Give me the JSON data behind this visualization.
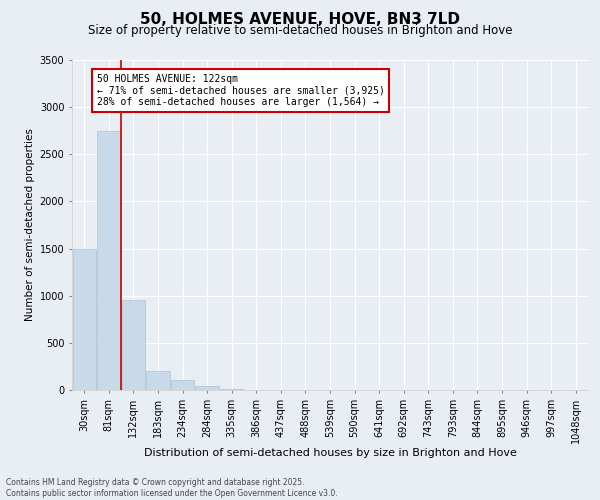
{
  "title": "50, HOLMES AVENUE, HOVE, BN3 7LD",
  "subtitle": "Size of property relative to semi-detached houses in Brighton and Hove",
  "xlabel": "Distribution of semi-detached houses by size in Brighton and Hove",
  "ylabel": "Number of semi-detached properties",
  "bar_color": "#c8daea",
  "bar_edge_color": "#aac4d8",
  "categories": [
    "30sqm",
    "81sqm",
    "132sqm",
    "183sqm",
    "234sqm",
    "284sqm",
    "335sqm",
    "386sqm",
    "437sqm",
    "488sqm",
    "539sqm",
    "590sqm",
    "641sqm",
    "692sqm",
    "743sqm",
    "793sqm",
    "844sqm",
    "895sqm",
    "946sqm",
    "997sqm",
    "1048sqm"
  ],
  "values": [
    1500,
    2750,
    950,
    200,
    110,
    40,
    8,
    0,
    0,
    0,
    0,
    0,
    0,
    0,
    0,
    0,
    0,
    0,
    0,
    0,
    0
  ],
  "ylim": [
    0,
    3500
  ],
  "yticks": [
    0,
    500,
    1000,
    1500,
    2000,
    2500,
    3000,
    3500
  ],
  "property_line_x": 1.5,
  "property_line_color": "#cc0000",
  "annotation_title": "50 HOLMES AVENUE: 122sqm",
  "annotation_line1": "← 71% of semi-detached houses are smaller (3,925)",
  "annotation_line2": "28% of semi-detached houses are larger (1,564) →",
  "annotation_box_color": "#cc0000",
  "footnote1": "Contains HM Land Registry data © Crown copyright and database right 2025.",
  "footnote2": "Contains public sector information licensed under the Open Government Licence v3.0.",
  "background_color": "#e8eef4",
  "plot_bg_color": "#e8eef4",
  "grid_color": "#ffffff",
  "title_fontsize": 11,
  "subtitle_fontsize": 8.5,
  "xlabel_fontsize": 8,
  "ylabel_fontsize": 7.5,
  "tick_fontsize": 7,
  "annotation_fontsize": 7,
  "footnote_fontsize": 5.5
}
